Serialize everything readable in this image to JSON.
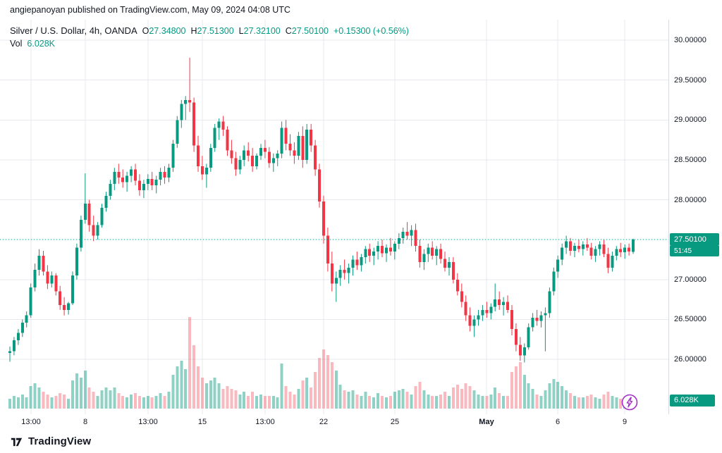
{
  "attribution": "angiepanoyan published on TradingView.com, May 09, 2024 04:08 UTC",
  "header": {
    "symbol_title": "Silver / U.S. Dollar, 4h, OANDA",
    "ohlc": [
      {
        "label": "O",
        "value": "27.34800"
      },
      {
        "label": "H",
        "value": "27.51300"
      },
      {
        "label": "L",
        "value": "27.32100"
      },
      {
        "label": "C",
        "value": "27.50100"
      }
    ],
    "change": "+0.15300 (+0.56%)",
    "vol_label": "Vol",
    "vol_value": "6.028K"
  },
  "last_price": {
    "value": "27.50100",
    "countdown": "51:45",
    "price": 27.501
  },
  "volume_badge": {
    "text": "6.028K",
    "volume_k": 6.028
  },
  "price_axis": {
    "ticks": [
      {
        "price": 30.0,
        "label": "30.00000"
      },
      {
        "price": 29.5,
        "label": "29.50000"
      },
      {
        "price": 29.0,
        "label": "29.00000"
      },
      {
        "price": 28.5,
        "label": "28.50000"
      },
      {
        "price": 28.0,
        "label": "28.00000"
      },
      {
        "price": 27.5,
        "label": "27.50000"
      },
      {
        "price": 27.0,
        "label": "27.00000"
      },
      {
        "price": 26.5,
        "label": "26.50000"
      },
      {
        "price": 26.0,
        "label": "26.00000"
      }
    ]
  },
  "time_axis": {
    "ticks": [
      {
        "index": 5,
        "label": "13:00"
      },
      {
        "index": 18,
        "label": "8"
      },
      {
        "index": 33,
        "label": "13:00"
      },
      {
        "index": 46,
        "label": "15"
      },
      {
        "index": 61,
        "label": "13:00"
      },
      {
        "index": 75,
        "label": "22"
      },
      {
        "index": 92,
        "label": "25"
      },
      {
        "index": 114,
        "label": "May",
        "bold": true
      },
      {
        "index": 131,
        "label": "6"
      },
      {
        "index": 147,
        "label": "9"
      }
    ]
  },
  "footer": {
    "logo_text": "TradingView"
  },
  "colors": {
    "up": "#089981",
    "down": "#F23645",
    "vol_up": "rgba(8,153,129,0.45)",
    "vol_down": "rgba(242,54,69,0.35)",
    "grid": "#E7E9EE",
    "text": "#131722",
    "badge": "#089981",
    "accent_purple": "#A42CC8"
  },
  "chart_data": {
    "type": "candlestick",
    "symbol": "Silver / U.S. Dollar",
    "interval": "4h",
    "exchange": "OANDA",
    "title": "Silver / U.S. Dollar, 4h, OANDA",
    "ylim": [
      25.9,
      30.1
    ],
    "price_decimals": 5,
    "volume_units": "thousands",
    "candles_format": "[open, high, low, close, volume_k]",
    "candles": [
      [
        26.08,
        26.16,
        25.97,
        26.1,
        7
      ],
      [
        26.1,
        26.28,
        26.05,
        26.24,
        9
      ],
      [
        26.24,
        26.38,
        26.18,
        26.33,
        8
      ],
      [
        26.33,
        26.5,
        26.28,
        26.46,
        10
      ],
      [
        26.46,
        26.6,
        26.4,
        26.55,
        8
      ],
      [
        26.55,
        26.95,
        26.52,
        26.9,
        16
      ],
      [
        26.9,
        27.2,
        26.85,
        27.12,
        18
      ],
      [
        27.12,
        27.38,
        27.05,
        27.3,
        15
      ],
      [
        27.3,
        27.36,
        27.05,
        27.1,
        12
      ],
      [
        27.1,
        27.18,
        26.88,
        26.95,
        10
      ],
      [
        26.95,
        27.1,
        26.9,
        27.05,
        8
      ],
      [
        27.05,
        27.08,
        26.8,
        26.85,
        9
      ],
      [
        26.85,
        26.92,
        26.62,
        26.68,
        11
      ],
      [
        26.68,
        26.78,
        26.55,
        26.62,
        10
      ],
      [
        26.62,
        26.72,
        26.56,
        26.7,
        7
      ],
      [
        26.7,
        27.1,
        26.68,
        27.05,
        20
      ],
      [
        27.05,
        27.45,
        27.0,
        27.4,
        25
      ],
      [
        27.4,
        27.8,
        27.35,
        27.75,
        22
      ],
      [
        27.75,
        28.33,
        27.7,
        27.95,
        27
      ],
      [
        27.95,
        28.0,
        27.6,
        27.68,
        15
      ],
      [
        27.68,
        27.8,
        27.48,
        27.55,
        12
      ],
      [
        27.55,
        27.72,
        27.5,
        27.68,
        9
      ],
      [
        27.68,
        27.95,
        27.65,
        27.9,
        13
      ],
      [
        27.9,
        28.1,
        27.85,
        28.05,
        15
      ],
      [
        28.05,
        28.25,
        28.0,
        28.2,
        13
      ],
      [
        28.2,
        28.4,
        28.12,
        28.35,
        15
      ],
      [
        28.35,
        28.45,
        28.2,
        28.28,
        11
      ],
      [
        28.28,
        28.38,
        28.15,
        28.22,
        9
      ],
      [
        28.22,
        28.35,
        28.1,
        28.3,
        8
      ],
      [
        28.3,
        28.42,
        28.22,
        28.38,
        10
      ],
      [
        28.38,
        28.45,
        28.18,
        28.24,
        11
      ],
      [
        28.24,
        28.32,
        28.05,
        28.12,
        9
      ],
      [
        28.12,
        28.25,
        28.02,
        28.2,
        8
      ],
      [
        28.2,
        28.32,
        28.12,
        28.26,
        9
      ],
      [
        28.26,
        28.35,
        28.12,
        28.18,
        8
      ],
      [
        28.18,
        28.3,
        28.08,
        28.25,
        9
      ],
      [
        28.25,
        28.4,
        28.18,
        28.35,
        11
      ],
      [
        28.35,
        28.42,
        28.2,
        28.28,
        9
      ],
      [
        28.28,
        28.45,
        28.22,
        28.4,
        12
      ],
      [
        28.4,
        28.75,
        28.35,
        28.7,
        24
      ],
      [
        28.7,
        29.05,
        28.65,
        29.0,
        30
      ],
      [
        29.0,
        29.25,
        28.9,
        29.2,
        34
      ],
      [
        29.2,
        29.3,
        29.0,
        29.25,
        28
      ],
      [
        29.25,
        29.78,
        29.1,
        29.22,
        65
      ],
      [
        29.22,
        29.28,
        28.6,
        28.68,
        45
      ],
      [
        28.68,
        28.8,
        28.35,
        28.42,
        30
      ],
      [
        28.42,
        28.55,
        28.25,
        28.32,
        22
      ],
      [
        28.32,
        28.45,
        28.15,
        28.4,
        18
      ],
      [
        28.4,
        28.7,
        28.35,
        28.65,
        20
      ],
      [
        28.65,
        28.95,
        28.6,
        28.9,
        22
      ],
      [
        28.9,
        29.02,
        28.75,
        28.98,
        18
      ],
      [
        28.98,
        29.05,
        28.8,
        28.88,
        14
      ],
      [
        28.88,
        28.92,
        28.55,
        28.62,
        16
      ],
      [
        28.62,
        28.75,
        28.45,
        28.52,
        14
      ],
      [
        28.52,
        28.6,
        28.3,
        28.38,
        13
      ],
      [
        28.38,
        28.55,
        28.32,
        28.5,
        10
      ],
      [
        28.5,
        28.68,
        28.42,
        28.62,
        12
      ],
      [
        28.62,
        28.72,
        28.48,
        28.55,
        9
      ],
      [
        28.55,
        28.65,
        28.35,
        28.42,
        12
      ],
      [
        28.42,
        28.58,
        28.38,
        28.55,
        9
      ],
      [
        28.55,
        28.7,
        28.5,
        28.65,
        10
      ],
      [
        28.65,
        28.75,
        28.52,
        28.6,
        9
      ],
      [
        28.6,
        28.66,
        28.4,
        28.46,
        9
      ],
      [
        28.46,
        28.58,
        28.35,
        28.52,
        9
      ],
      [
        28.52,
        28.62,
        28.42,
        28.58,
        8
      ],
      [
        28.58,
        28.98,
        28.52,
        28.9,
        32
      ],
      [
        28.9,
        29.0,
        28.62,
        28.7,
        16
      ],
      [
        28.7,
        28.82,
        28.55,
        28.62,
        12
      ],
      [
        28.62,
        28.72,
        28.45,
        28.55,
        10
      ],
      [
        28.55,
        28.85,
        28.5,
        28.8,
        14
      ],
      [
        28.8,
        28.92,
        28.4,
        28.5,
        20
      ],
      [
        28.5,
        28.95,
        28.45,
        28.88,
        22
      ],
      [
        28.88,
        28.95,
        28.6,
        28.68,
        15
      ],
      [
        28.68,
        28.75,
        28.3,
        28.38,
        26
      ],
      [
        28.38,
        28.45,
        27.9,
        27.98,
        36
      ],
      [
        27.98,
        28.05,
        27.45,
        27.55,
        42
      ],
      [
        27.55,
        27.65,
        27.1,
        27.2,
        38
      ],
      [
        27.2,
        27.35,
        26.85,
        26.95,
        33
      ],
      [
        26.95,
        27.1,
        26.72,
        27.02,
        27
      ],
      [
        27.02,
        27.18,
        26.92,
        27.12,
        17
      ],
      [
        27.12,
        27.25,
        27.0,
        27.08,
        13
      ],
      [
        27.08,
        27.2,
        26.95,
        27.15,
        12
      ],
      [
        27.15,
        27.3,
        27.05,
        27.25,
        13
      ],
      [
        27.25,
        27.35,
        27.12,
        27.18,
        10
      ],
      [
        27.18,
        27.32,
        27.1,
        27.28,
        9
      ],
      [
        27.28,
        27.42,
        27.2,
        27.38,
        12
      ],
      [
        27.38,
        27.45,
        27.22,
        27.3,
        9
      ],
      [
        27.3,
        27.4,
        27.18,
        27.35,
        8
      ],
      [
        27.35,
        27.48,
        27.25,
        27.42,
        11
      ],
      [
        27.42,
        27.5,
        27.28,
        27.33,
        9
      ],
      [
        27.33,
        27.44,
        27.22,
        27.4,
        8
      ],
      [
        27.4,
        27.52,
        27.3,
        27.35,
        9
      ],
      [
        27.35,
        27.48,
        27.25,
        27.45,
        12
      ],
      [
        27.45,
        27.58,
        27.38,
        27.52,
        13
      ],
      [
        27.52,
        27.65,
        27.45,
        27.6,
        14
      ],
      [
        27.6,
        27.72,
        27.5,
        27.55,
        12
      ],
      [
        27.55,
        27.68,
        27.42,
        27.62,
        10
      ],
      [
        27.62,
        27.7,
        27.35,
        27.42,
        16
      ],
      [
        27.42,
        27.5,
        27.15,
        27.22,
        19
      ],
      [
        27.22,
        27.38,
        27.12,
        27.32,
        13
      ],
      [
        27.32,
        27.45,
        27.22,
        27.4,
        10
      ],
      [
        27.4,
        27.48,
        27.25,
        27.3,
        9
      ],
      [
        27.3,
        27.42,
        27.18,
        27.38,
        9
      ],
      [
        27.38,
        27.45,
        27.2,
        27.26,
        10
      ],
      [
        27.26,
        27.35,
        27.1,
        27.15,
        12
      ],
      [
        27.15,
        27.28,
        27.05,
        27.22,
        9
      ],
      [
        27.22,
        27.28,
        26.95,
        27.0,
        15
      ],
      [
        27.0,
        27.08,
        26.8,
        26.85,
        17
      ],
      [
        26.85,
        26.95,
        26.65,
        26.72,
        14
      ],
      [
        26.72,
        26.8,
        26.48,
        26.55,
        18
      ],
      [
        26.55,
        26.65,
        26.35,
        26.42,
        16
      ],
      [
        26.42,
        26.55,
        26.28,
        26.5,
        13
      ],
      [
        26.5,
        26.62,
        26.42,
        26.55,
        10
      ],
      [
        26.55,
        26.68,
        26.48,
        26.62,
        9
      ],
      [
        26.62,
        26.72,
        26.52,
        26.58,
        9
      ],
      [
        26.58,
        26.7,
        26.5,
        26.66,
        10
      ],
      [
        26.66,
        26.95,
        26.6,
        26.75,
        15
      ],
      [
        26.75,
        26.85,
        26.62,
        26.68,
        11
      ],
      [
        26.68,
        26.78,
        26.55,
        26.72,
        9
      ],
      [
        26.72,
        26.8,
        26.58,
        26.62,
        9
      ],
      [
        26.62,
        26.68,
        26.3,
        26.38,
        26
      ],
      [
        26.38,
        26.45,
        26.1,
        26.18,
        30
      ],
      [
        26.18,
        26.28,
        25.98,
        26.05,
        33
      ],
      [
        26.05,
        26.2,
        25.96,
        26.15,
        24
      ],
      [
        26.15,
        26.45,
        26.12,
        26.4,
        18
      ],
      [
        26.4,
        26.58,
        26.35,
        26.52,
        14
      ],
      [
        26.52,
        26.62,
        26.42,
        26.48,
        10
      ],
      [
        26.48,
        26.6,
        26.4,
        26.55,
        9
      ],
      [
        26.55,
        26.65,
        26.1,
        26.58,
        13
      ],
      [
        26.58,
        26.9,
        26.52,
        26.85,
        18
      ],
      [
        26.85,
        27.15,
        26.8,
        27.1,
        21
      ],
      [
        27.1,
        27.3,
        27.02,
        27.25,
        19
      ],
      [
        27.25,
        27.45,
        27.18,
        27.4,
        16
      ],
      [
        27.4,
        27.55,
        27.32,
        27.48,
        13
      ],
      [
        27.48,
        27.52,
        27.3,
        27.36,
        11
      ],
      [
        27.36,
        27.46,
        27.28,
        27.42,
        9
      ],
      [
        27.42,
        27.5,
        27.34,
        27.38,
        8
      ],
      [
        27.38,
        27.48,
        27.3,
        27.44,
        8
      ],
      [
        27.44,
        27.52,
        27.36,
        27.4,
        9
      ],
      [
        27.4,
        27.46,
        27.25,
        27.3,
        10
      ],
      [
        27.3,
        27.42,
        27.22,
        27.38,
        8
      ],
      [
        27.38,
        27.48,
        27.3,
        27.44,
        7
      ],
      [
        27.44,
        27.5,
        27.28,
        27.32,
        10
      ],
      [
        27.32,
        27.4,
        27.08,
        27.15,
        12
      ],
      [
        27.15,
        27.35,
        27.1,
        27.3,
        9
      ],
      [
        27.3,
        27.42,
        27.24,
        27.38,
        8
      ],
      [
        27.38,
        27.46,
        27.28,
        27.34,
        7
      ],
      [
        27.34,
        27.44,
        27.26,
        27.4,
        7
      ],
      [
        27.4,
        27.45,
        27.3,
        27.35,
        6
      ],
      [
        27.348,
        27.513,
        27.321,
        27.501,
        6.028
      ]
    ]
  }
}
